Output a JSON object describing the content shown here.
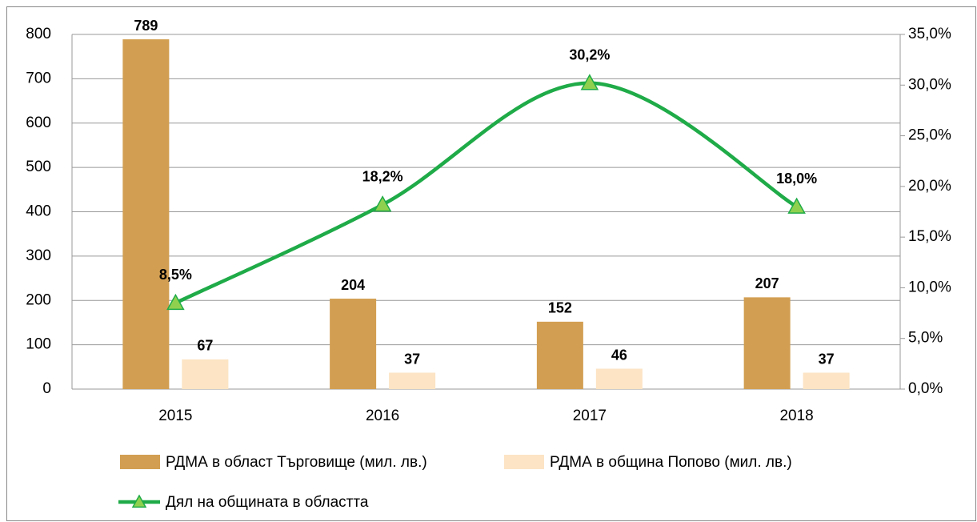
{
  "chart_data": {
    "type": "bar_line",
    "categories": [
      "2015",
      "2016",
      "2017",
      "2018"
    ],
    "series": [
      {
        "name": "РДМА в област Търговище (мил. лв.)",
        "color": "#d29f52",
        "values": [
          789,
          204,
          152,
          207
        ]
      },
      {
        "name": "РДМА в община Попово (мил. лв.)",
        "color": "#fce4c4",
        "values": [
          67,
          37,
          46,
          37
        ]
      },
      {
        "name": "Дял на общината в областта",
        "color": "#1fab48",
        "marker_color": "#8fd14f",
        "axis": "y2",
        "values": [
          8.5,
          18.2,
          30.2,
          18.0
        ],
        "value_labels": [
          "8,5%",
          "18,2%",
          "30,2%",
          "18,0%"
        ]
      }
    ],
    "ylim": [
      0,
      800
    ],
    "yticks": [
      0,
      100,
      200,
      300,
      400,
      500,
      600,
      700,
      800
    ],
    "y2lim": [
      0,
      35
    ],
    "y2ticks": [
      {
        "value": 0,
        "label": "0,0%"
      },
      {
        "value": 5,
        "label": "5,0%"
      },
      {
        "value": 10,
        "label": "10,0%"
      },
      {
        "value": 15,
        "label": "15,0%"
      },
      {
        "value": 20,
        "label": "20,0%"
      },
      {
        "value": 25,
        "label": "25,0%"
      },
      {
        "value": 30,
        "label": "30,0%"
      },
      {
        "value": 35,
        "label": "35,0%"
      }
    ],
    "grid": true
  }
}
